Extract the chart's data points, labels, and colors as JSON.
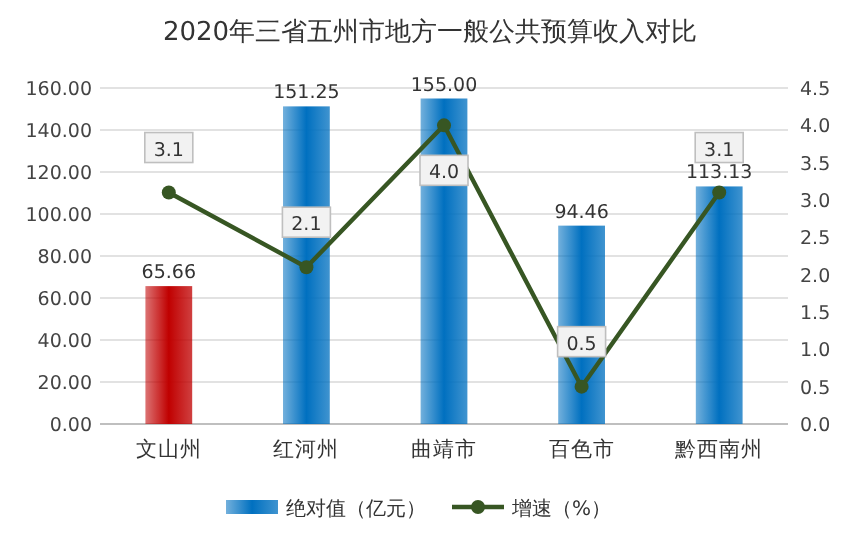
{
  "chart_data": {
    "type": "bar",
    "title": "2020年三省五州市地方一般公共预算收入对比",
    "categories": [
      "文山州",
      "红河州",
      "曲靖市",
      "百色市",
      "黔西南州"
    ],
    "series": [
      {
        "name": "绝对值（亿元）",
        "color": "#0070c0",
        "colors": [
          "#c00000",
          "#0070c0",
          "#0070c0",
          "#0070c0",
          "#0070c0"
        ],
        "values": [
          65.66,
          151.25,
          155.0,
          94.46,
          113.13
        ],
        "value_labels": [
          "65.66",
          "151.25",
          "155.00",
          "94.46",
          "113.13"
        ]
      },
      {
        "name": "增速（%）",
        "type": "line",
        "axis": "y2",
        "color": "#375623",
        "values": [
          3.1,
          2.1,
          4.0,
          0.5,
          3.1
        ],
        "value_labels": [
          "3.1",
          "2.1",
          "4.0",
          "0.5",
          "3.1"
        ]
      }
    ],
    "ylim": [
      0,
      160
    ],
    "yticks": [
      {
        "value": 0,
        "label": "0.00"
      },
      {
        "value": 20,
        "label": "20.00"
      },
      {
        "value": 40,
        "label": "40.00"
      },
      {
        "value": 60,
        "label": "60.00"
      },
      {
        "value": 80,
        "label": "80.00"
      },
      {
        "value": 100,
        "label": "100.00"
      },
      {
        "value": 120,
        "label": "120.00"
      },
      {
        "value": 140,
        "label": "140.00"
      },
      {
        "value": 160,
        "label": "160.00"
      }
    ],
    "y2lim": [
      0,
      4.5
    ],
    "y2ticks": [
      {
        "value": 0,
        "label": "0.0"
      },
      {
        "value": 0.5,
        "label": "0.5"
      },
      {
        "value": 1,
        "label": "1.0"
      },
      {
        "value": 1.5,
        "label": "1.5"
      },
      {
        "value": 2,
        "label": "2.0"
      },
      {
        "value": 2.5,
        "label": "2.5"
      },
      {
        "value": 3,
        "label": "3.0"
      },
      {
        "value": 3.5,
        "label": "3.5"
      },
      {
        "value": 4,
        "label": "4.0"
      },
      {
        "value": 4.5,
        "label": "4.5"
      }
    ],
    "grid": "y",
    "legend": "bottom",
    "marker": "circle",
    "line_style": "solid"
  }
}
